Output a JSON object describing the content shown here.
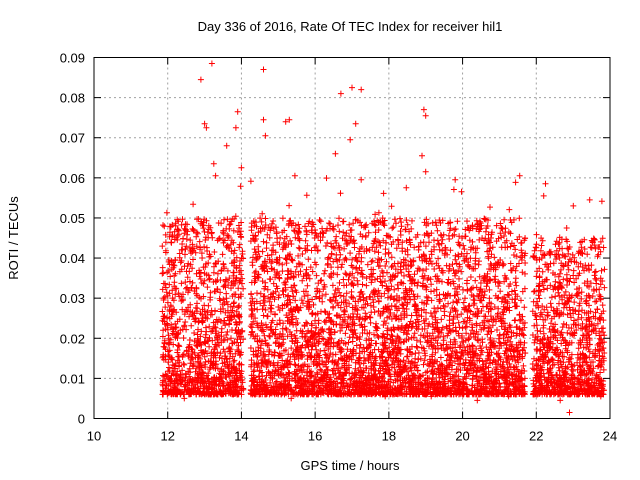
{
  "chart_data": {
    "type": "scatter",
    "title": "Day 336 of 2016, Rate Of TEC Index for receiver hil1",
    "xlabel": "GPS time / hours",
    "ylabel": "ROTI / TECUs",
    "xlim": [
      10,
      24
    ],
    "ylim": [
      0,
      0.09
    ],
    "x_ticks": [
      "10",
      "12",
      "14",
      "16",
      "18",
      "20",
      "22",
      "24"
    ],
    "y_ticks": [
      "0",
      "0.01",
      "0.02",
      "0.03",
      "0.04",
      "0.05",
      "0.06",
      "0.07",
      "0.08",
      "0.09"
    ],
    "grid": true,
    "marker": "+",
    "series_color": "#ff0000",
    "observation_windows": [
      {
        "start": 11.85,
        "end": 14.05,
        "typical_range": [
          0.006,
          0.05
        ]
      },
      {
        "start": 14.25,
        "end": 21.7,
        "typical_range": [
          0.006,
          0.05
        ]
      },
      {
        "start": 21.9,
        "end": 23.85,
        "typical_range": [
          0.006,
          0.045
        ]
      }
    ],
    "outliers": [
      {
        "x": 12.9,
        "y": 0.0845
      },
      {
        "x": 13.2,
        "y": 0.0885
      },
      {
        "x": 14.6,
        "y": 0.087
      },
      {
        "x": 16.7,
        "y": 0.081
      },
      {
        "x": 17.0,
        "y": 0.0825
      },
      {
        "x": 17.25,
        "y": 0.082
      },
      {
        "x": 13.0,
        "y": 0.0735
      },
      {
        "x": 13.05,
        "y": 0.0725
      },
      {
        "x": 13.9,
        "y": 0.0765
      },
      {
        "x": 13.85,
        "y": 0.0725
      },
      {
        "x": 14.6,
        "y": 0.0745
      },
      {
        "x": 14.65,
        "y": 0.0705
      },
      {
        "x": 15.2,
        "y": 0.074
      },
      {
        "x": 15.3,
        "y": 0.0745
      },
      {
        "x": 17.1,
        "y": 0.0735
      },
      {
        "x": 18.95,
        "y": 0.077
      },
      {
        "x": 19.0,
        "y": 0.0755
      },
      {
        "x": 16.95,
        "y": 0.0695
      },
      {
        "x": 13.25,
        "y": 0.0635
      },
      {
        "x": 13.6,
        "y": 0.068
      },
      {
        "x": 16.55,
        "y": 0.066
      },
      {
        "x": 18.9,
        "y": 0.0655
      },
      {
        "x": 19.0,
        "y": 0.0615
      },
      {
        "x": 21.55,
        "y": 0.0605
      },
      {
        "x": 22.25,
        "y": 0.0585
      },
      {
        "x": 22.2,
        "y": 0.0555
      },
      {
        "x": 23.45,
        "y": 0.0545
      },
      {
        "x": 17.25,
        "y": 0.0595
      },
      {
        "x": 15.45,
        "y": 0.0605
      },
      {
        "x": 13.3,
        "y": 0.0605
      },
      {
        "x": 14.0,
        "y": 0.0625
      },
      {
        "x": 19.8,
        "y": 0.0595
      },
      {
        "x": 22.9,
        "y": 0.0015
      },
      {
        "x": 22.65,
        "y": 0.0045
      },
      {
        "x": 12.45,
        "y": 0.005
      },
      {
        "x": 15.35,
        "y": 0.005
      },
      {
        "x": 17.9,
        "y": 0.0055
      },
      {
        "x": 19.15,
        "y": 0.0055
      },
      {
        "x": 20.4,
        "y": 0.0045
      },
      {
        "x": 23.75,
        "y": 0.0055
      },
      {
        "x": 13.85,
        "y": 0.0065
      },
      {
        "x": 21.25,
        "y": 0.0055
      }
    ]
  }
}
